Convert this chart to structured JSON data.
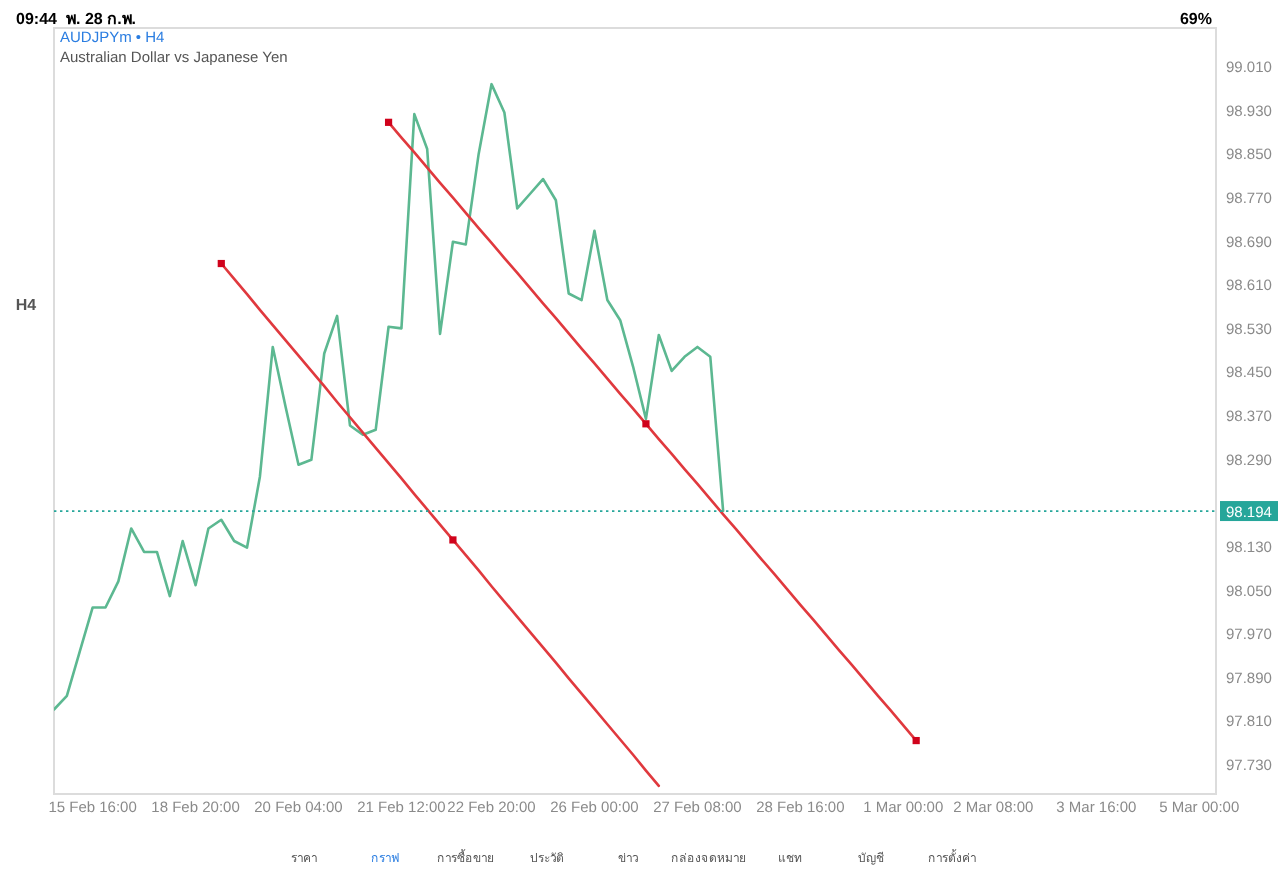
{
  "chart_data": {
    "type": "line",
    "title": "AUDJPYm • H4",
    "subtitle": "Australian Dollar vs Japanese Yen",
    "categories": [
      null,
      null,
      null,
      "15 Feb 16:00",
      null,
      null,
      null,
      null,
      null,
      null,
      null,
      "18 Feb 20:00",
      null,
      null,
      null,
      null,
      null,
      null,
      null,
      "20 Feb 04:00",
      null,
      null,
      null,
      null,
      null,
      null,
      null,
      "21 Feb 12:00",
      null,
      null,
      null,
      null,
      null,
      null,
      "22 Feb 20:00",
      null,
      null,
      null,
      null,
      null,
      null,
      null,
      "26 Feb 00:00",
      null,
      null,
      null,
      null,
      null,
      null,
      null,
      "27 Feb 08:00",
      null,
      null,
      null,
      null,
      null,
      null,
      null,
      "28 Feb 16:00",
      null,
      null,
      null,
      null,
      null,
      null,
      null,
      "1 Mar 00:00",
      null,
      null,
      null,
      null,
      null,
      null,
      "2 Mar 08:00",
      null,
      null,
      null,
      null,
      null,
      null,
      null,
      "3 Mar 16:00",
      null,
      null,
      null,
      null,
      null,
      null,
      null,
      "5 Mar 00:00",
      null
    ],
    "ylim": [
      97.675,
      99.08
    ],
    "yticks": [
      {
        "value": 97.73,
        "label": "97.730"
      },
      {
        "value": 97.81,
        "label": "97.810"
      },
      {
        "value": 97.89,
        "label": "97.890"
      },
      {
        "value": 97.97,
        "label": "97.970"
      },
      {
        "value": 98.05,
        "label": "98.050"
      },
      {
        "value": 98.13,
        "label": "98.130"
      },
      {
        "value": 98.29,
        "label": "98.290"
      },
      {
        "value": 98.37,
        "label": "98.370"
      },
      {
        "value": 98.45,
        "label": "98.450"
      },
      {
        "value": 98.53,
        "label": "98.530"
      },
      {
        "value": 98.61,
        "label": "98.610"
      },
      {
        "value": 98.69,
        "label": "98.690"
      },
      {
        "value": 98.77,
        "label": "98.770"
      },
      {
        "value": 98.85,
        "label": "98.850"
      },
      {
        "value": 98.93,
        "label": "98.930"
      },
      {
        "value": 99.01,
        "label": "99.010"
      }
    ],
    "series": [
      {
        "color": "#5cb891",
        "values": [
          97.83,
          97.855,
          97.936,
          98.017,
          98.017,
          98.065,
          98.162,
          98.119,
          98.119,
          98.038,
          98.139,
          98.058,
          98.162,
          98.178,
          98.139,
          98.127,
          98.257,
          98.495,
          98.385,
          98.279,
          98.288,
          98.483,
          98.552,
          98.351,
          98.334,
          98.343,
          98.532,
          98.529,
          98.922,
          98.858,
          98.519,
          98.688,
          98.683,
          98.849,
          98.977,
          98.925,
          98.749,
          98.776,
          98.803,
          98.764,
          98.593,
          98.581,
          98.708,
          98.581,
          98.544,
          98.459,
          98.363,
          98.517,
          98.451,
          98.477,
          98.495,
          98.477,
          98.194,
          null,
          null,
          null,
          null,
          null,
          null,
          null,
          null,
          null,
          null,
          null,
          null,
          null,
          null,
          null,
          null,
          null,
          null,
          null,
          null,
          null,
          null,
          null,
          null,
          null,
          null,
          null,
          null,
          null,
          null,
          null,
          null,
          null,
          null,
          null,
          null,
          null,
          null
        ]
      },
      {
        "color": "#e0393e",
        "values": [
          null,
          null,
          null,
          null,
          null,
          null,
          null,
          null,
          null,
          null,
          null,
          null,
          null,
          98.648,
          98.62,
          98.592,
          98.563,
          98.535,
          98.507,
          98.479,
          98.451,
          98.423,
          98.394,
          98.366,
          98.338,
          98.31,
          98.282,
          98.254,
          98.225,
          98.197,
          98.169,
          98.141,
          98.113,
          98.085,
          98.056,
          98.028,
          98.0,
          97.972,
          97.944,
          97.916,
          97.887,
          97.859,
          97.831,
          97.803,
          97.775,
          97.747,
          97.718,
          97.69,
          null,
          null,
          null,
          null,
          null,
          null,
          null,
          null,
          null,
          null,
          null,
          null,
          null,
          null,
          null,
          null,
          null,
          null,
          null,
          null,
          null,
          null,
          null,
          null,
          null,
          null,
          null,
          null,
          null,
          null,
          null,
          null,
          null,
          null,
          null,
          null,
          null,
          null,
          null,
          null,
          null,
          null,
          null
        ]
      },
      {
        "color": "#e0393e",
        "values": [
          null,
          null,
          null,
          null,
          null,
          null,
          null,
          null,
          null,
          null,
          null,
          null,
          null,
          null,
          null,
          null,
          null,
          null,
          null,
          null,
          null,
          null,
          null,
          null,
          null,
          null,
          98.907,
          98.879,
          98.852,
          98.824,
          98.796,
          98.769,
          98.741,
          98.713,
          98.686,
          98.658,
          98.631,
          98.603,
          98.575,
          98.548,
          98.52,
          98.492,
          98.465,
          98.437,
          98.409,
          98.382,
          98.354,
          98.326,
          98.299,
          98.271,
          98.244,
          98.216,
          98.188,
          98.161,
          98.133,
          98.105,
          98.078,
          98.05,
          98.022,
          97.995,
          97.967,
          97.939,
          97.912,
          97.884,
          97.856,
          97.829,
          97.801,
          97.773,
          null,
          null,
          null,
          null,
          null,
          null,
          null,
          null,
          null,
          null,
          null,
          null,
          null,
          null,
          null,
          null,
          null,
          null,
          null,
          null,
          null,
          null,
          null
        ]
      },
      {
        "type": "scatter",
        "color": "#d0021b",
        "marker": "square",
        "values": [
          null,
          null,
          null,
          null,
          null,
          null,
          null,
          null,
          null,
          null,
          null,
          null,
          null,
          98.648,
          null,
          null,
          null,
          null,
          null,
          null,
          null,
          null,
          null,
          null,
          null,
          null,
          98.907,
          null,
          null,
          null,
          null,
          98.141,
          null,
          null,
          null,
          null,
          null,
          null,
          null,
          null,
          null,
          null,
          null,
          null,
          null,
          null,
          98.354,
          null,
          null,
          null,
          null,
          null,
          null,
          null,
          null,
          null,
          null,
          null,
          null,
          null,
          null,
          null,
          null,
          null,
          null,
          null,
          null,
          97.773,
          null,
          null,
          null,
          null,
          null,
          null,
          null,
          null,
          null,
          null,
          null,
          null,
          null,
          null,
          null,
          null,
          null,
          null,
          null,
          null,
          null,
          null,
          null
        ]
      }
    ],
    "ref_lines": [
      {
        "axis": "y",
        "value": 98.194,
        "label": "98.194",
        "color": "#26a69a",
        "line_style": "dotted"
      }
    ],
    "annotations": [
      "09:44",
      "พ. 28 ก.พ.",
      "69%",
      "H4",
      "ราคา",
      "กราฟ",
      "การซื้อขาย",
      "ประวัติ",
      "ข่าว",
      "กล่องจดหมาย",
      "แชท",
      "บัญชี",
      "การตั้งค่า"
    ]
  }
}
